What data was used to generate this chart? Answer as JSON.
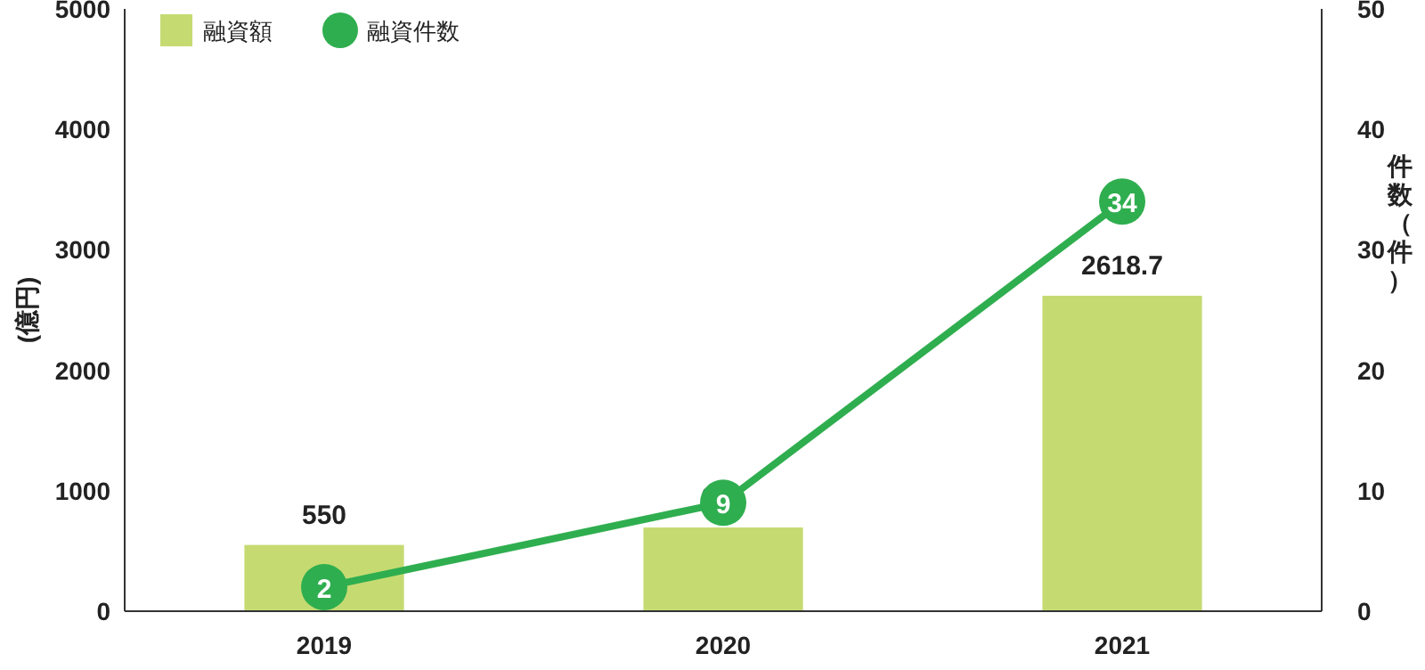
{
  "chart_data": {
    "type": "bar",
    "categories": [
      "2019",
      "2020",
      "2021"
    ],
    "ylabel": "(億円)",
    "y2label": "件数（件）",
    "ylim": [
      0,
      5000
    ],
    "yticks": [
      0,
      1000,
      2000,
      3000,
      4000,
      5000
    ],
    "y2lim": [
      0,
      50
    ],
    "y2ticks": [
      0,
      10,
      20,
      30,
      40,
      50
    ],
    "grid": false,
    "legend": "top left",
    "data_labels": true,
    "marker": "circle",
    "series": [
      {
        "name": "融資額",
        "color": "#c5db72",
        "values": [
          550,
          695,
          2618.7
        ]
      },
      {
        "name": "融資件数",
        "type": "line",
        "axis": "y2",
        "color": "#2fae4f",
        "values": [
          2,
          9,
          34
        ]
      }
    ]
  }
}
